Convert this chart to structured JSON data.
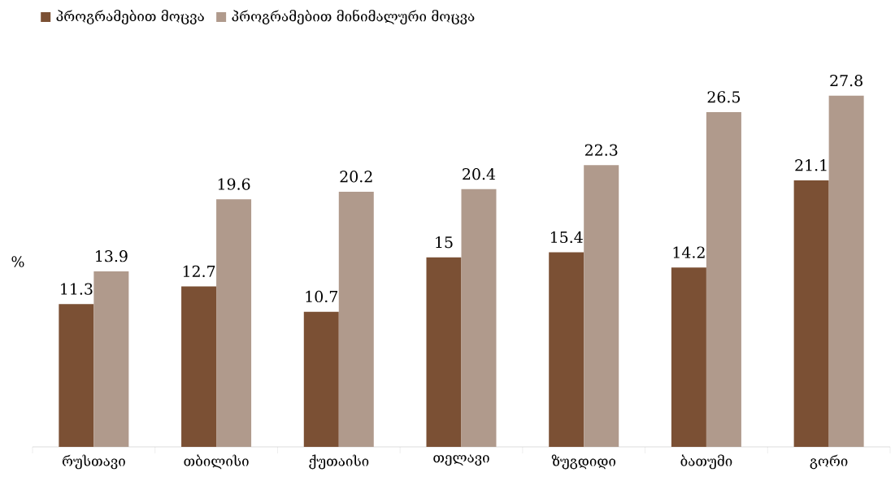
{
  "chart_data": {
    "type": "bar",
    "ylabel": "%",
    "categories": [
      "რუსთავი",
      "თბილისი",
      "ქუთაისი",
      "თელავი",
      "ზუგდიდი",
      "ბათუმი",
      "გორი"
    ],
    "series": [
      {
        "name": "პროგრამებით მოცვა",
        "color": "#7b5034",
        "values": [
          11.3,
          12.7,
          10.7,
          15,
          15.4,
          14.2,
          21.1
        ]
      },
      {
        "name": "პროგრამებით მინიმალური მოცვა",
        "color": "#b09a8c",
        "values": [
          13.9,
          19.6,
          20.2,
          20.4,
          22.3,
          26.5,
          27.8
        ]
      }
    ],
    "data_labels": true,
    "legend": "top left"
  }
}
